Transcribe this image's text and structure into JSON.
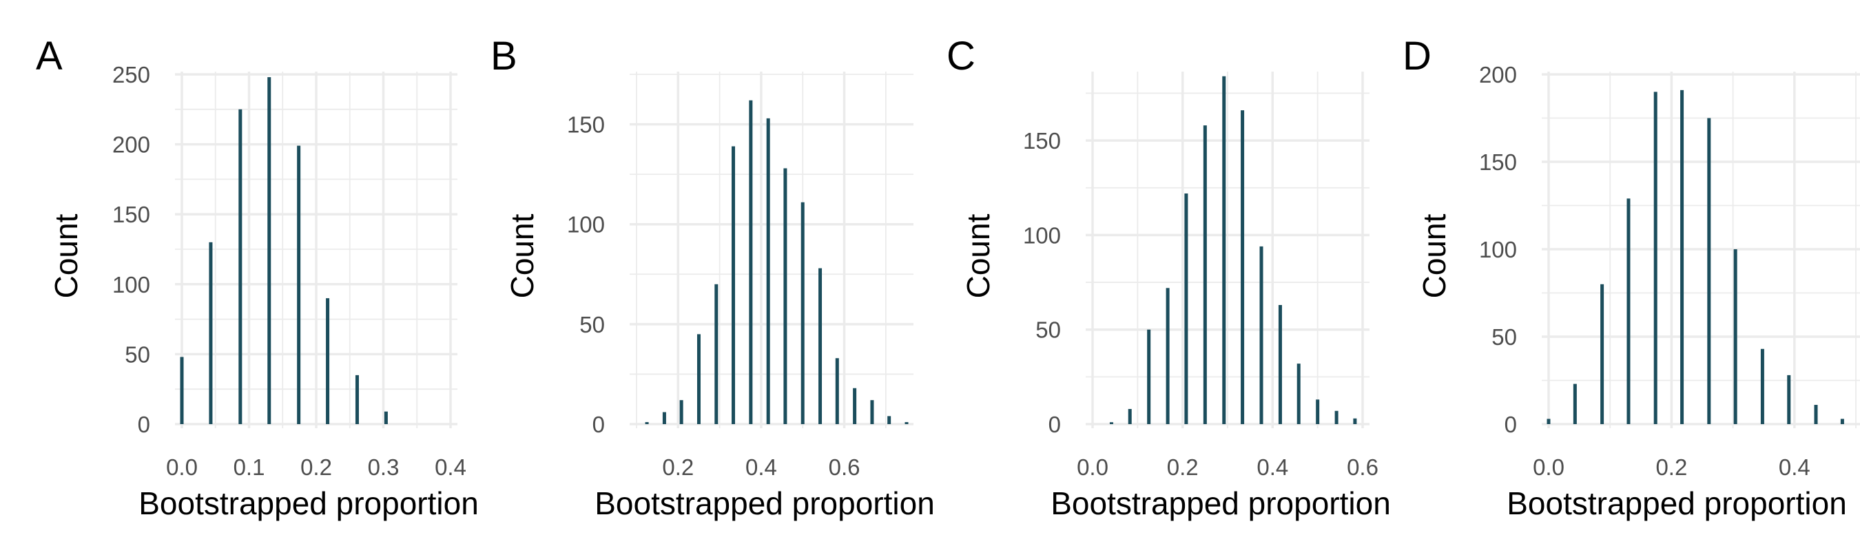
{
  "figure": {
    "bar_color": "#1b4d5c",
    "grid_color": "#ebebeb",
    "background": "#ffffff"
  },
  "chart_data": [
    {
      "panel": "A",
      "type": "bar",
      "xlabel": "Bootstrapped proportion",
      "ylabel": "Count",
      "xlim": [
        0.0,
        0.4
      ],
      "ylim": [
        0,
        250
      ],
      "x_ticks": [
        0.0,
        0.1,
        0.2,
        0.3,
        0.4
      ],
      "x_tick_labels": [
        "0.0",
        "0.1",
        "0.2",
        "0.3",
        "0.4"
      ],
      "y_ticks": [
        0,
        50,
        100,
        150,
        200,
        250
      ],
      "y_tick_labels": [
        "0",
        "50",
        "100",
        "150",
        "200",
        "250"
      ],
      "x": [
        0.0,
        0.043,
        0.087,
        0.13,
        0.174,
        0.217,
        0.261,
        0.304
      ],
      "values": [
        48,
        130,
        225,
        248,
        199,
        90,
        35,
        9
      ]
    },
    {
      "panel": "B",
      "type": "bar",
      "xlabel": "Bootstrapped proportion",
      "ylabel": "Count",
      "xlim": [
        0.1,
        0.75
      ],
      "ylim": [
        0,
        175
      ],
      "x_ticks": [
        0.2,
        0.4,
        0.6
      ],
      "x_tick_labels": [
        "0.2",
        "0.4",
        "0.6"
      ],
      "y_ticks": [
        0,
        50,
        100,
        150
      ],
      "y_tick_labels": [
        "0",
        "50",
        "100",
        "150"
      ],
      "x": [
        0.125,
        0.167,
        0.208,
        0.25,
        0.292,
        0.333,
        0.375,
        0.417,
        0.458,
        0.5,
        0.542,
        0.583,
        0.625,
        0.667,
        0.708,
        0.75
      ],
      "values": [
        1,
        6,
        12,
        45,
        70,
        139,
        162,
        153,
        128,
        111,
        78,
        33,
        18,
        12,
        4,
        1
      ]
    },
    {
      "panel": "C",
      "type": "bar",
      "xlabel": "Bootstrapped proportion",
      "ylabel": "Count",
      "xlim": [
        0.0,
        0.6
      ],
      "ylim": [
        0,
        185
      ],
      "x_ticks": [
        0.0,
        0.2,
        0.4,
        0.6
      ],
      "x_tick_labels": [
        "0.0",
        "0.2",
        "0.4",
        "0.6"
      ],
      "y_ticks": [
        0,
        50,
        100,
        150
      ],
      "y_tick_labels": [
        "0",
        "50",
        "100",
        "150"
      ],
      "x": [
        0.042,
        0.083,
        0.125,
        0.167,
        0.208,
        0.25,
        0.292,
        0.333,
        0.375,
        0.417,
        0.458,
        0.5,
        0.542,
        0.583
      ],
      "values": [
        1,
        8,
        50,
        72,
        122,
        158,
        184,
        166,
        94,
        63,
        32,
        13,
        7,
        3
      ]
    },
    {
      "panel": "D",
      "type": "bar",
      "xlabel": "Bootstrapped proportion",
      "ylabel": "Count",
      "xlim": [
        0.0,
        0.5
      ],
      "ylim": [
        0,
        200
      ],
      "x_ticks": [
        0.0,
        0.2,
        0.4
      ],
      "x_tick_labels": [
        "0.0",
        "0.2",
        "0.4"
      ],
      "y_ticks": [
        0,
        50,
        100,
        150,
        200
      ],
      "y_tick_labels": [
        "0",
        "50",
        "100",
        "150",
        "200"
      ],
      "x": [
        0.0,
        0.043,
        0.087,
        0.13,
        0.174,
        0.217,
        0.261,
        0.304,
        0.348,
        0.391,
        0.435,
        0.478
      ],
      "values": [
        3,
        23,
        80,
        129,
        190,
        191,
        175,
        100,
        43,
        28,
        11,
        3
      ]
    }
  ]
}
